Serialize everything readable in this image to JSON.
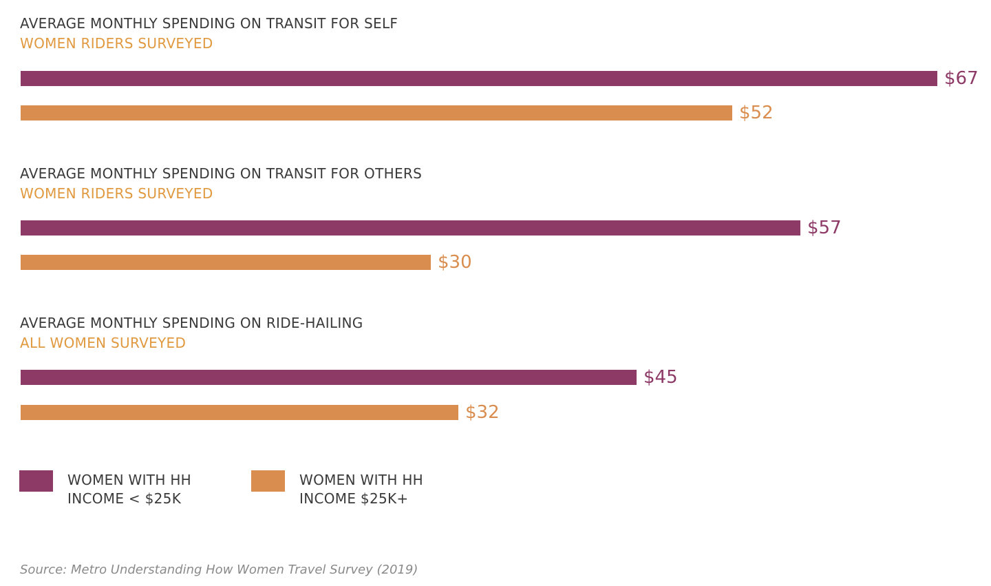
{
  "colors": {
    "low_income": "#8e3a67",
    "high_income": "#d98d4e",
    "title": "#3a3a3a",
    "subtitle": "#e0993f",
    "source": "#8a8a8a"
  },
  "chart_data": [
    {
      "type": "bar",
      "orientation": "horizontal",
      "title": "AVERAGE MONTHLY SPENDING ON TRANSIT FOR SELF",
      "subtitle": "WOMEN RIDERS SURVEYED",
      "series": [
        {
          "name": "WOMEN WITH HH INCOME < $25K",
          "value": 67,
          "label": "$67"
        },
        {
          "name": "WOMEN WITH HH INCOME $25K+",
          "value": 52,
          "label": "$52"
        }
      ],
      "xlim": [
        0,
        67
      ]
    },
    {
      "type": "bar",
      "orientation": "horizontal",
      "title": "AVERAGE MONTHLY SPENDING ON TRANSIT FOR OTHERS",
      "subtitle": "WOMEN RIDERS SURVEYED",
      "series": [
        {
          "name": "WOMEN WITH HH INCOME < $25K",
          "value": 57,
          "label": "$57"
        },
        {
          "name": "WOMEN WITH HH INCOME $25K+",
          "value": 30,
          "label": "$30"
        }
      ],
      "xlim": [
        0,
        67
      ]
    },
    {
      "type": "bar",
      "orientation": "horizontal",
      "title": "AVERAGE MONTHLY SPENDING ON RIDE-HAILING",
      "subtitle": "ALL WOMEN SURVEYED",
      "series": [
        {
          "name": "WOMEN WITH HH INCOME < $25K",
          "value": 45,
          "label": "$45"
        },
        {
          "name": "WOMEN WITH HH INCOME $25K+",
          "value": 32,
          "label": "$32"
        }
      ],
      "xlim": [
        0,
        67
      ]
    }
  ],
  "legend": {
    "placement": "bottom-left",
    "items": [
      {
        "line1": "WOMEN WITH HH",
        "line2": "INCOME < $25K",
        "color_key": "low_income"
      },
      {
        "line1": "WOMEN WITH HH",
        "line2": "INCOME $25K+",
        "color_key": "high_income"
      }
    ]
  },
  "source": "Source: Metro Understanding How Women Travel Survey (2019)"
}
